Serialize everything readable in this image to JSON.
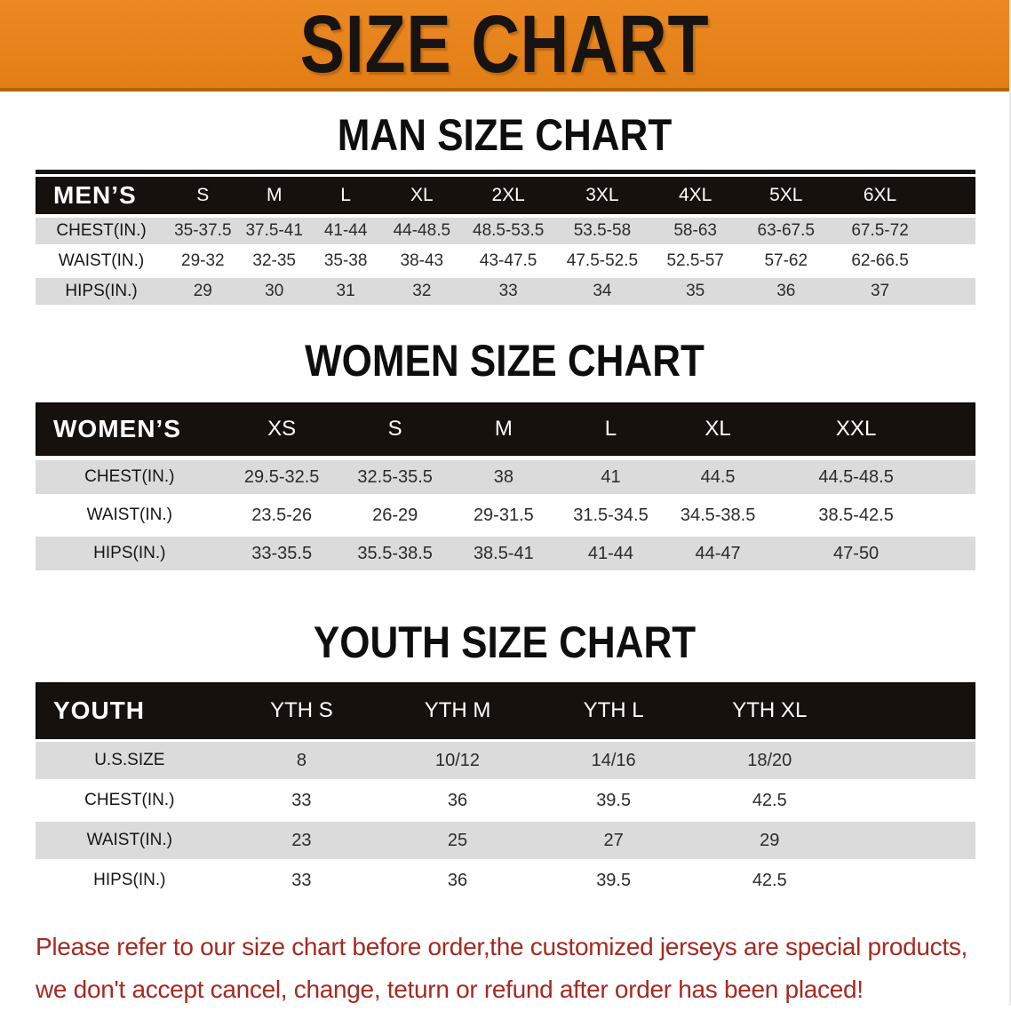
{
  "banner": {
    "title": "SIZE CHART"
  },
  "colors": {
    "banner_orange": "#E8821E",
    "banner_edge": "#B2650E",
    "header_band_black": "#17110D",
    "row_stripe_gray": "#DBDBDB",
    "footer_red": "#A52A21"
  },
  "sections": [
    {
      "id": "men",
      "heading": "MAN SIZE CHART",
      "corner_label": "MEN’S",
      "columns": [
        "S",
        "M",
        "L",
        "XL",
        "2XL",
        "3XL",
        "4XL",
        "5XL",
        "6XL"
      ],
      "rows": [
        {
          "label": "CHEST(IN.)",
          "values": [
            "35-37.5",
            "37.5-41",
            "41-44",
            "44-48.5",
            "48.5-53.5",
            "53.5-58",
            "58-63",
            "63-67.5",
            "67.5-72"
          ]
        },
        {
          "label": "WAIST(IN.)",
          "values": [
            "29-32",
            "32-35",
            "35-38",
            "38-43",
            "43-47.5",
            "47.5-52.5",
            "52.5-57",
            "57-62",
            "62-66.5"
          ]
        },
        {
          "label": "HIPS(IN.)",
          "values": [
            "29",
            "30",
            "31",
            "32",
            "33",
            "34",
            "35",
            "36",
            "37"
          ]
        }
      ]
    },
    {
      "id": "women",
      "heading": "WOMEN SIZE CHART",
      "corner_label": "WOMEN’S",
      "columns": [
        "XS",
        "S",
        "M",
        "L",
        "XL",
        "XXL"
      ],
      "rows": [
        {
          "label": "CHEST(IN.)",
          "values": [
            "29.5-32.5",
            "32.5-35.5",
            "38",
            "41",
            "44.5",
            "44.5-48.5"
          ]
        },
        {
          "label": "WAIST(IN.)",
          "values": [
            "23.5-26",
            "26-29",
            "29-31.5",
            "31.5-34.5",
            "34.5-38.5",
            "38.5-42.5"
          ]
        },
        {
          "label": "HIPS(IN.)",
          "values": [
            "33-35.5",
            "35.5-38.5",
            "38.5-41",
            "41-44",
            "44-47",
            "47-50"
          ]
        }
      ]
    },
    {
      "id": "youth",
      "heading": "YOUTH SIZE CHART",
      "corner_label": "YOUTH",
      "columns": [
        "YTH S",
        "YTH M",
        "YTH L",
        "YTH XL"
      ],
      "rows": [
        {
          "label": "U.S.SIZE",
          "values": [
            "8",
            "10/12",
            "14/16",
            "18/20"
          ]
        },
        {
          "label": "CHEST(IN.)",
          "values": [
            "33",
            "36",
            "39.5",
            "42.5"
          ]
        },
        {
          "label": "WAIST(IN.)",
          "values": [
            "23",
            "25",
            "27",
            "29"
          ]
        },
        {
          "label": "HIPS(IN.)",
          "values": [
            "33",
            "36",
            "39.5",
            "42.5"
          ]
        }
      ]
    }
  ],
  "footer": {
    "line1": "Please refer to our size chart before order,the customized jerseys are special products,",
    "line2": "we don't accept cancel, change, teturn or refund after order has been placed!"
  }
}
